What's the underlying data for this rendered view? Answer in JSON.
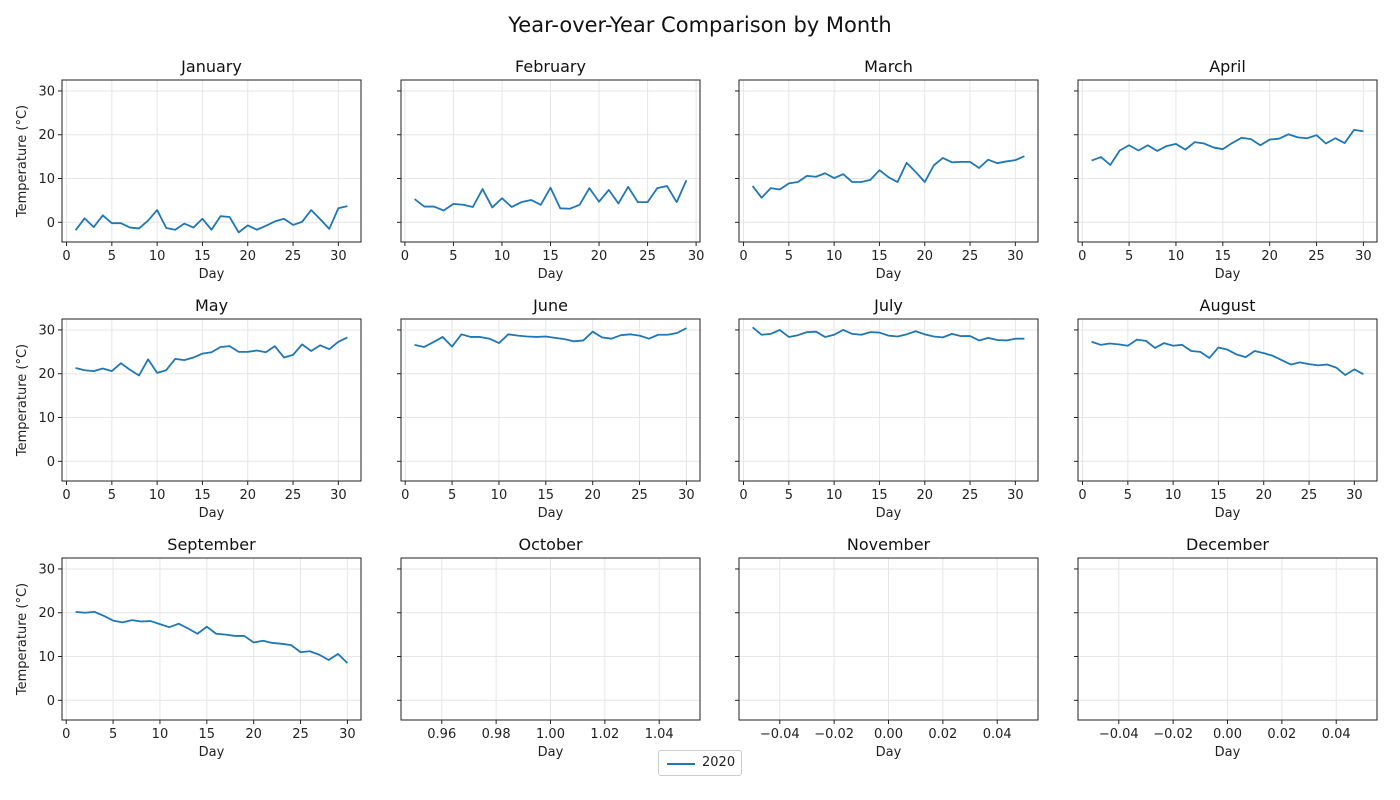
{
  "chart_data": {
    "type": "line",
    "title": "Year-over-Year Comparison by Month",
    "xlabel": "Day",
    "ylabel": "Temperature (°C)",
    "ylim": [
      -4.5,
      32.5
    ],
    "yticks": [
      0,
      10,
      20,
      30
    ],
    "grid": true,
    "legend": {
      "entries": [
        "2020"
      ],
      "placement": "bottom-center"
    },
    "series_color": "#1f77b4",
    "panels": [
      {
        "title": "January",
        "xlim": [
          -0.5,
          32.5
        ],
        "xticks": [
          "0",
          "5",
          "10",
          "15",
          "20",
          "25",
          "30"
        ],
        "x_start": 1,
        "values": [
          -1.8,
          0.9,
          -1.1,
          1.6,
          -0.2,
          -0.2,
          -1.2,
          -1.4,
          0.4,
          2.8,
          -1.3,
          -1.7,
          -0.3,
          -1.2,
          0.8,
          -1.7,
          1.4,
          1.2,
          -2.3,
          -0.7,
          -1.7,
          -0.8,
          0.2,
          0.8,
          -0.6,
          0.1,
          2.8,
          0.7,
          -1.5,
          3.2,
          3.7
        ]
      },
      {
        "title": "February",
        "xlim": [
          -0.4,
          30.4
        ],
        "xticks": [
          "0",
          "5",
          "10",
          "15",
          "20",
          "25",
          "30"
        ],
        "x_start": 1,
        "values": [
          5.3,
          3.6,
          3.6,
          2.7,
          4.2,
          4.0,
          3.5,
          7.6,
          3.4,
          5.5,
          3.5,
          4.6,
          5.1,
          4.0,
          7.9,
          3.2,
          3.1,
          4.0,
          7.8,
          4.7,
          7.4,
          4.3,
          8.1,
          4.6,
          4.6,
          7.8,
          8.3,
          4.6,
          9.6
        ]
      },
      {
        "title": "March",
        "xlim": [
          -0.5,
          32.5
        ],
        "xticks": [
          "0",
          "5",
          "10",
          "15",
          "20",
          "25",
          "30"
        ],
        "x_start": 1,
        "values": [
          8.3,
          5.6,
          7.8,
          7.5,
          8.9,
          9.2,
          10.6,
          10.4,
          11.2,
          10.1,
          11.0,
          9.2,
          9.2,
          9.7,
          11.9,
          10.3,
          9.2,
          13.6,
          11.5,
          9.2,
          13.0,
          14.7,
          13.7,
          13.8,
          13.8,
          12.4,
          14.3,
          13.5,
          13.9,
          14.2,
          15.1
        ]
      },
      {
        "title": "April",
        "xlim": [
          -0.45,
          31.45
        ],
        "xticks": [
          "0",
          "5",
          "10",
          "15",
          "20",
          "25",
          "30"
        ],
        "x_start": 1,
        "values": [
          14.1,
          14.9,
          13.1,
          16.4,
          17.6,
          16.4,
          17.6,
          16.3,
          17.4,
          17.9,
          16.6,
          18.3,
          18.0,
          17.1,
          16.7,
          18.1,
          19.3,
          19.0,
          17.6,
          18.9,
          19.1,
          20.1,
          19.4,
          19.2,
          19.9,
          18.0,
          19.2,
          18.1,
          21.1,
          20.8
        ]
      },
      {
        "title": "May",
        "xlim": [
          -0.5,
          32.5
        ],
        "xticks": [
          "0",
          "5",
          "10",
          "15",
          "20",
          "25",
          "30"
        ],
        "x_start": 1,
        "values": [
          21.3,
          20.8,
          20.6,
          21.2,
          20.6,
          22.4,
          20.9,
          19.6,
          23.3,
          20.2,
          20.8,
          23.4,
          23.1,
          23.7,
          24.6,
          24.9,
          26.1,
          26.3,
          25.0,
          25.0,
          25.3,
          24.9,
          26.3,
          23.7,
          24.3,
          26.7,
          25.2,
          26.5,
          25.6,
          27.3,
          28.3
        ]
      },
      {
        "title": "June",
        "xlim": [
          -0.45,
          31.45
        ],
        "xticks": [
          "0",
          "5",
          "10",
          "15",
          "20",
          "25",
          "30"
        ],
        "x_start": 1,
        "values": [
          26.6,
          26.1,
          27.2,
          28.4,
          26.2,
          29.0,
          28.4,
          28.4,
          28.0,
          27.0,
          29.0,
          28.7,
          28.5,
          28.4,
          28.5,
          28.2,
          27.9,
          27.4,
          27.6,
          29.6,
          28.3,
          28.0,
          28.8,
          29.0,
          28.7,
          28.0,
          28.9,
          28.9,
          29.3,
          30.4
        ]
      },
      {
        "title": "July",
        "xlim": [
          -0.5,
          32.5
        ],
        "xticks": [
          "0",
          "5",
          "10",
          "15",
          "20",
          "25",
          "30"
        ],
        "x_start": 1,
        "values": [
          30.6,
          28.9,
          29.1,
          30.0,
          28.4,
          28.8,
          29.5,
          29.6,
          28.4,
          28.9,
          30.0,
          29.1,
          28.9,
          29.5,
          29.4,
          28.7,
          28.5,
          29.0,
          29.7,
          29.0,
          28.5,
          28.3,
          29.1,
          28.6,
          28.6,
          27.6,
          28.2,
          27.7,
          27.6,
          28.0,
          28.0
        ]
      },
      {
        "title": "August",
        "xlim": [
          -0.5,
          32.5
        ],
        "xticks": [
          "0",
          "5",
          "10",
          "15",
          "20",
          "25",
          "30"
        ],
        "x_start": 1,
        "values": [
          27.3,
          26.6,
          26.9,
          26.7,
          26.4,
          27.8,
          27.5,
          25.9,
          27.0,
          26.4,
          26.6,
          25.2,
          25.0,
          23.6,
          26.0,
          25.5,
          24.4,
          23.8,
          25.2,
          24.7,
          24.1,
          23.1,
          22.1,
          22.6,
          22.2,
          21.9,
          22.1,
          21.4,
          19.7,
          21.0,
          19.9
        ]
      },
      {
        "title": "September",
        "xlim": [
          -0.45,
          31.45
        ],
        "xticks": [
          "0",
          "5",
          "10",
          "15",
          "20",
          "25",
          "30"
        ],
        "x_start": 1,
        "values": [
          20.2,
          20.0,
          20.2,
          19.3,
          18.2,
          17.8,
          18.3,
          18.0,
          18.1,
          17.4,
          16.7,
          17.5,
          16.4,
          15.2,
          16.8,
          15.2,
          15.0,
          14.7,
          14.7,
          13.2,
          13.6,
          13.1,
          12.9,
          12.6,
          11.0,
          11.2,
          10.4,
          9.2,
          10.6,
          8.5
        ]
      },
      {
        "title": "October",
        "xlim": [
          0.945,
          1.055
        ],
        "xticks": [
          "0.96",
          "0.98",
          "1.00",
          "1.02",
          "1.04"
        ],
        "values": []
      },
      {
        "title": "November",
        "xlim": [
          -0.055,
          0.055
        ],
        "xticks": [
          "−0.04",
          "−0.02",
          "0.00",
          "0.02",
          "0.04"
        ],
        "values": []
      },
      {
        "title": "December",
        "xlim": [
          -0.055,
          0.055
        ],
        "xticks": [
          "−0.04",
          "−0.02",
          "0.00",
          "0.02",
          "0.04"
        ],
        "values": []
      }
    ]
  }
}
